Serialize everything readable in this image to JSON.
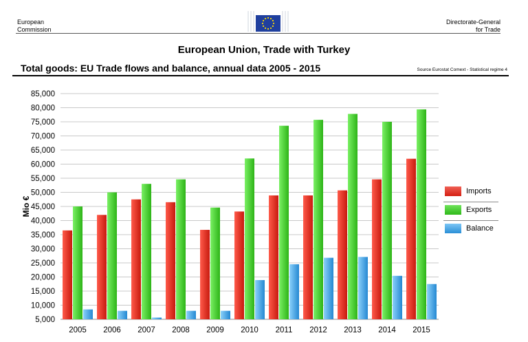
{
  "header": {
    "left_line1": "European",
    "left_line2": "Commission",
    "right_line1": "Directorate-General",
    "right_line2": "for Trade",
    "logo_icon": "eu-flag-icon"
  },
  "title": "European Union, Trade with Turkey",
  "subtitle": "Total goods: EU Trade flows and balance, annual data 2005 - 2015",
  "source": "Source Eurostat Comext  - Statistical regime 4",
  "colors": {
    "imports": "#e8261b",
    "exports": "#43d12a",
    "balance": "#3aa3e8"
  },
  "chart_data": {
    "type": "bar",
    "title": "Total goods: EU Trade flows and balance, annual data 2005 - 2015",
    "xlabel": "",
    "ylabel": "Mio €",
    "ylim": [
      5000,
      85000
    ],
    "yticks": [
      5000,
      10000,
      15000,
      20000,
      25000,
      30000,
      35000,
      40000,
      45000,
      50000,
      55000,
      60000,
      65000,
      70000,
      75000,
      80000,
      85000
    ],
    "ytick_labels": [
      "5,000",
      "10,000",
      "15,000",
      "20,000",
      "25,000",
      "30,000",
      "35,000",
      "40,000",
      "45,000",
      "50,000",
      "55,000",
      "60,000",
      "65,000",
      "70,000",
      "75,000",
      "80,000",
      "85,000"
    ],
    "grid": true,
    "legend_position": "right",
    "categories": [
      "2005",
      "2006",
      "2007",
      "2008",
      "2009",
      "2010",
      "2011",
      "2012",
      "2013",
      "2014",
      "2015"
    ],
    "series": [
      {
        "name": "Imports",
        "values": [
          36500,
          42000,
          47500,
          46500,
          36700,
          43200,
          48900,
          48900,
          50700,
          54600,
          61900
        ]
      },
      {
        "name": "Exports",
        "values": [
          45000,
          50000,
          53000,
          54600,
          44600,
          62000,
          73600,
          75700,
          77800,
          75000,
          79400
        ]
      },
      {
        "name": "Balance",
        "values": [
          8500,
          8000,
          5600,
          8000,
          8000,
          18900,
          24500,
          26800,
          27100,
          20400,
          17500
        ]
      }
    ]
  }
}
